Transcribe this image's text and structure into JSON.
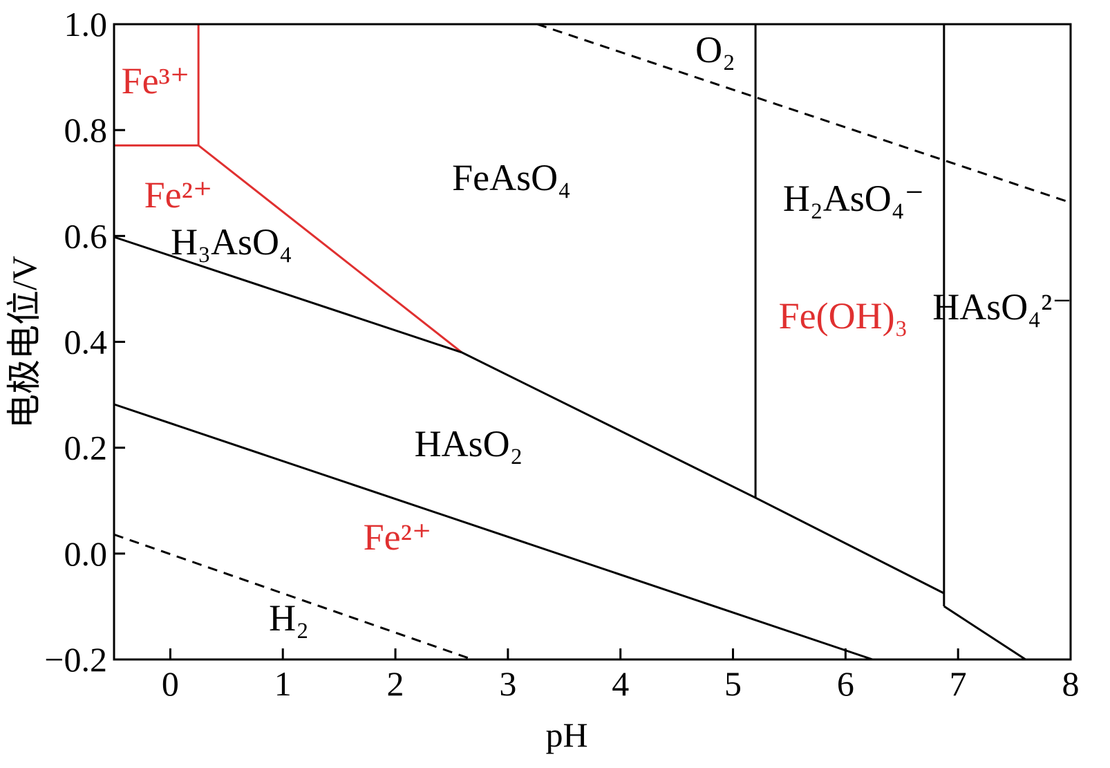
{
  "chart_data": {
    "type": "line",
    "xlabel": "pH",
    "ylabel": "电极电位/V",
    "xlim": [
      -0.5,
      8
    ],
    "ylim": [
      -0.2,
      1.0
    ],
    "xticks": [
      0,
      1,
      2,
      3,
      4,
      5,
      6,
      7,
      8
    ],
    "yticks": [
      {
        "value": 1.0,
        "label": "1.0"
      },
      0.8,
      0.6,
      0.4,
      0.2,
      {
        "value": 0,
        "label": "0.0"
      },
      {
        "value": -0.2,
        "label": "−0.2"
      }
    ],
    "series": [
      {
        "color": "#e03030",
        "dash": false,
        "x": [
          0.25,
          0.25
        ],
        "values": [
          1.0,
          0.771
        ]
      },
      {
        "color": "#e03030",
        "dash": false,
        "x": [
          -0.5,
          0.25,
          2.59
        ],
        "values": [
          0.771,
          0.771,
          0.38
        ]
      },
      {
        "color": "#000000",
        "dash": false,
        "x": [
          -0.5,
          2.59,
          5.2,
          6.875
        ],
        "values": [
          0.598,
          0.38,
          0.1055,
          -0.075
        ]
      },
      {
        "color": "#000000",
        "dash": false,
        "x": [
          6.875,
          7.6
        ],
        "values": [
          -0.0995,
          -0.2
        ]
      },
      {
        "color": "#000000",
        "dash": false,
        "x": [
          5.2,
          5.2
        ],
        "values": [
          0.1055,
          1.0
        ]
      },
      {
        "color": "#000000",
        "dash": false,
        "x": [
          6.875,
          6.875
        ],
        "values": [
          -0.0995,
          1.0
        ]
      },
      {
        "color": "#000000",
        "dash": false,
        "x": [
          -0.5,
          6.24
        ],
        "values": [
          0.282,
          -0.2
        ]
      },
      {
        "color": "#000000",
        "dash": true,
        "x": [
          3.26,
          8
        ],
        "values": [
          1.0,
          0.663
        ]
      },
      {
        "color": "#000000",
        "dash": true,
        "x": [
          -0.5,
          2.685
        ],
        "values": [
          0.036,
          -0.2
        ]
      }
    ],
    "annotations": [
      {
        "text": "O₂",
        "color": "#000000"
      },
      {
        "text": "Fe³⁺",
        "color": "#e03030"
      },
      {
        "text": "Fe²⁺",
        "color": "#e03030"
      },
      {
        "text": "FeAsO₄",
        "color": "#000000"
      },
      {
        "text": "H₂AsO₄⁻",
        "color": "#000000"
      },
      {
        "text": "H₃AsO₄",
        "color": "#000000"
      },
      {
        "text": "HAsO₄²⁻",
        "color": "#000000"
      },
      {
        "text": "Fe(OH)₃",
        "color": "#e03030"
      },
      {
        "text": "HAsO₂",
        "color": "#000000"
      },
      {
        "text": "Fe²⁺",
        "color": "#e03030"
      },
      {
        "text": "H₂",
        "color": "#000000"
      }
    ]
  }
}
